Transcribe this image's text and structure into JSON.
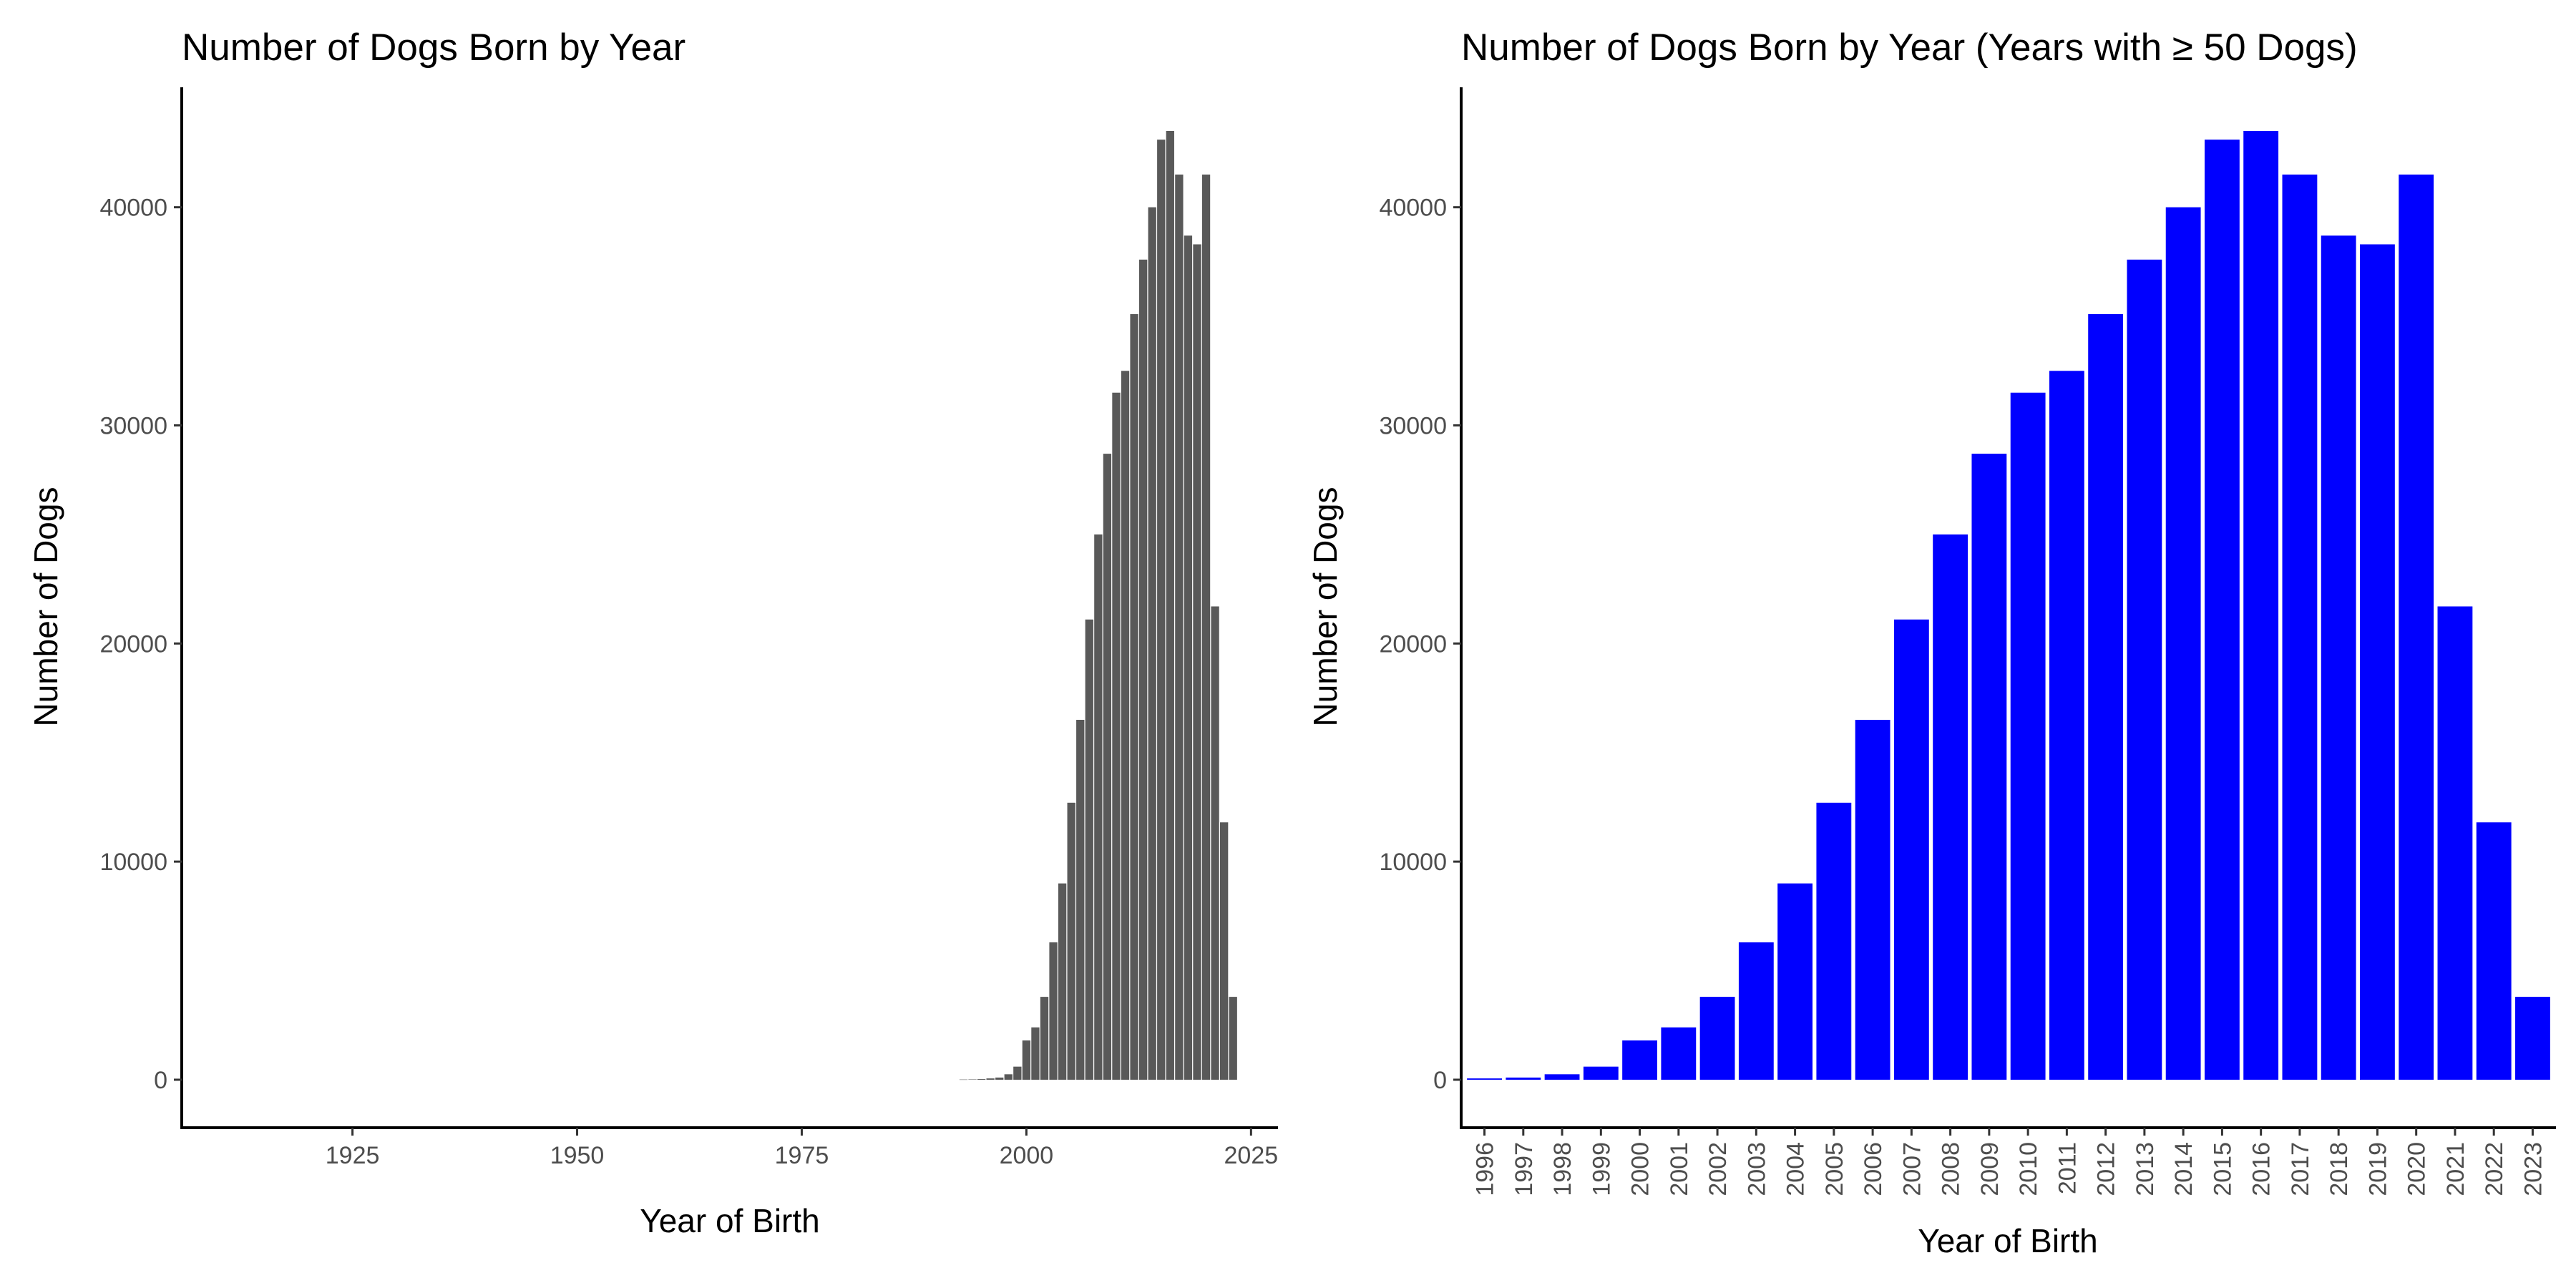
{
  "chart_data": [
    {
      "type": "bar",
      "title": "Number of Dogs Born by Year",
      "xlabel": "Year of Birth",
      "ylabel": "Number of Dogs",
      "xlim": [
        1906,
        2028
      ],
      "ylim": [
        -2200,
        45500
      ],
      "x_ticks": [
        1925,
        1950,
        1975,
        2000,
        2025
      ],
      "y_ticks": [
        0,
        10000,
        20000,
        30000,
        40000
      ],
      "grid": false,
      "bar_color": "#595959",
      "x": [
        1993,
        1994,
        1995,
        1996,
        1997,
        1998,
        1999,
        2000,
        2001,
        2002,
        2003,
        2004,
        2005,
        2006,
        2007,
        2008,
        2009,
        2010,
        2011,
        2012,
        2013,
        2014,
        2015,
        2016,
        2017,
        2018,
        2019,
        2020,
        2021,
        2022,
        2023
      ],
      "values": [
        10,
        15,
        30,
        60,
        100,
        250,
        600,
        1800,
        2400,
        3800,
        6300,
        9000,
        12700,
        16500,
        21100,
        25000,
        28700,
        31500,
        32500,
        35100,
        37600,
        40000,
        43100,
        43500,
        41500,
        38700,
        38300,
        41500,
        21700,
        11800,
        3800
      ]
    },
    {
      "type": "bar",
      "title": "Number of Dogs Born by Year (Years with ≥ 50 Dogs)",
      "xlabel": "Year of Birth",
      "ylabel": "Number of Dogs",
      "ylim": [
        -2200,
        45500
      ],
      "y_ticks": [
        0,
        10000,
        20000,
        30000,
        40000
      ],
      "grid": false,
      "bar_color": "#0000ff",
      "categories": [
        "1996",
        "1997",
        "1998",
        "1999",
        "2000",
        "2001",
        "2002",
        "2003",
        "2004",
        "2005",
        "2006",
        "2007",
        "2008",
        "2009",
        "2010",
        "2011",
        "2012",
        "2013",
        "2014",
        "2015",
        "2016",
        "2017",
        "2018",
        "2019",
        "2020",
        "2021",
        "2022",
        "2023"
      ],
      "values": [
        60,
        100,
        250,
        600,
        1800,
        2400,
        3800,
        6300,
        9000,
        12700,
        16500,
        21100,
        25000,
        28700,
        31500,
        32500,
        35100,
        37600,
        40000,
        43100,
        43500,
        41500,
        38700,
        38300,
        41500,
        21700,
        11800,
        3800
      ]
    }
  ]
}
